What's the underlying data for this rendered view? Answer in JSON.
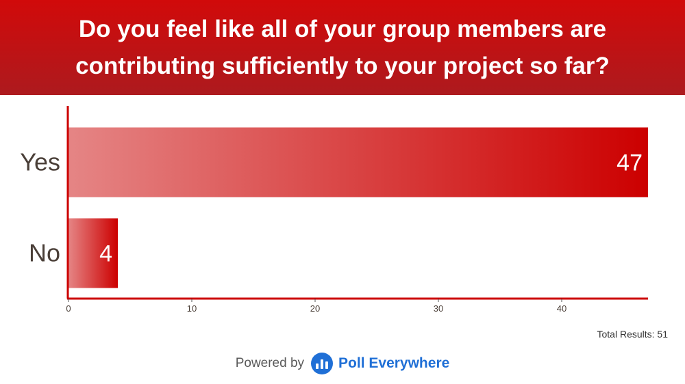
{
  "header": {
    "title": "Do you feel like all of your group members are contributing sufficiently to your project so far?"
  },
  "chart_data": {
    "type": "bar",
    "orientation": "horizontal",
    "categories": [
      "Yes",
      "No"
    ],
    "values": [
      47,
      4
    ],
    "xlim": [
      0,
      47
    ],
    "xticks": [
      0,
      10,
      20,
      30,
      40
    ],
    "grid": false,
    "legend": "none",
    "colors": {
      "bar_start": "#e58585",
      "bar_end": "#cc0000",
      "axis": "#cc0000"
    }
  },
  "total_results": "Total Results: 51",
  "footer": {
    "powered_by": "Powered by",
    "brand": "Poll Everywhere",
    "brand_color": "#1f6fd6"
  }
}
